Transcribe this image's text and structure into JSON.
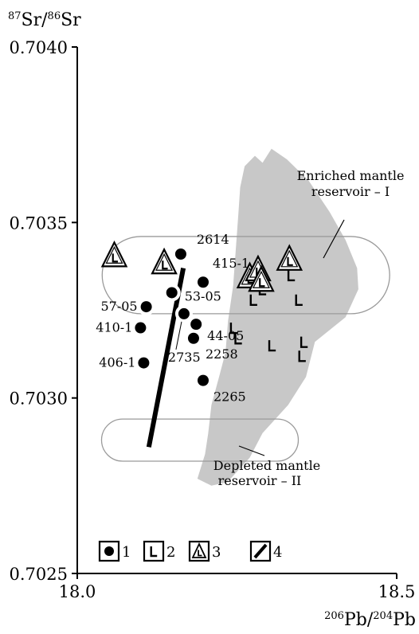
{
  "chart_data": {
    "type": "scatter",
    "xlabel": {
      "mass_top": "206",
      "element_top": "Pb/",
      "mass_bottom": "204",
      "element_bottom": "Pb"
    },
    "ylabel": {
      "mass_top": "87",
      "element_top": "Sr/",
      "mass_bottom": "86",
      "element_bottom": "Sr"
    },
    "xlim": [
      18.0,
      18.5
    ],
    "ylim": [
      0.7025,
      0.704
    ],
    "x_ticks": [
      {
        "value": 18.0,
        "label": "18.0"
      },
      {
        "value": 18.5,
        "label": "18.5"
      }
    ],
    "y_ticks": [
      {
        "value": 0.7025,
        "label": "0.7025"
      },
      {
        "value": 0.703,
        "label": "0.7030"
      },
      {
        "value": 0.7035,
        "label": "0.7035"
      },
      {
        "value": 0.704,
        "label": "0.7040"
      }
    ],
    "colors": {
      "field_gray": "#c8c8c8",
      "ink": "#000000",
      "envelope": "#9a9a9a"
    },
    "samples": [
      {
        "label": "2614",
        "x": 18.162,
        "y": 0.70341
      },
      {
        "label": "415-1",
        "x": 18.197,
        "y": 0.70333
      },
      {
        "label": "53-05",
        "x": 18.148,
        "y": 0.7033
      },
      {
        "label": "57-05",
        "x": 18.108,
        "y": 0.70326
      },
      {
        "label": "410-1",
        "x": 18.099,
        "y": 0.7032
      },
      {
        "label": "44-05",
        "x": 18.186,
        "y": 0.70321
      },
      {
        "label": "2735",
        "x": 18.167,
        "y": 0.70324
      },
      {
        "label": "2258",
        "x": 18.182,
        "y": 0.70317
      },
      {
        "label": "406-1",
        "x": 18.104,
        "y": 0.7031
      },
      {
        "label": "2265",
        "x": 18.197,
        "y": 0.70305
      }
    ],
    "basalts_L": [
      {
        "x": 18.284,
        "y": 0.70333
      },
      {
        "x": 18.29,
        "y": 0.70331
      },
      {
        "x": 18.276,
        "y": 0.70328
      },
      {
        "x": 18.335,
        "y": 0.70335
      },
      {
        "x": 18.347,
        "y": 0.70328
      },
      {
        "x": 18.245,
        "y": 0.7032
      },
      {
        "x": 18.252,
        "y": 0.70317
      },
      {
        "x": 18.305,
        "y": 0.70315
      },
      {
        "x": 18.352,
        "y": 0.70312
      },
      {
        "x": 18.355,
        "y": 0.70316
      }
    ],
    "triangles": [
      {
        "x": 18.058,
        "y": 0.7034
      },
      {
        "x": 18.136,
        "y": 0.70338
      },
      {
        "x": 18.27,
        "y": 0.70334
      },
      {
        "x": 18.283,
        "y": 0.70336
      },
      {
        "x": 18.288,
        "y": 0.70333
      },
      {
        "x": 18.332,
        "y": 0.70339
      }
    ],
    "trend_line": [
      {
        "x": 18.112,
        "y": 0.70286
      },
      {
        "x": 18.166,
        "y": 0.70337
      }
    ],
    "enriched_field": [
      [
        18.255,
        0.7036
      ],
      [
        18.262,
        0.70366
      ],
      [
        18.278,
        0.70369
      ],
      [
        18.29,
        0.70367
      ],
      [
        18.304,
        0.70371
      ],
      [
        18.328,
        0.70368
      ],
      [
        18.362,
        0.70362
      ],
      [
        18.395,
        0.70353
      ],
      [
        18.42,
        0.70345
      ],
      [
        18.438,
        0.70337
      ],
      [
        18.44,
        0.70331
      ],
      [
        18.42,
        0.70323
      ],
      [
        18.372,
        0.70316
      ],
      [
        18.358,
        0.70306
      ],
      [
        18.33,
        0.70298
      ],
      [
        18.29,
        0.7029
      ],
      [
        18.27,
        0.70283
      ],
      [
        18.235,
        0.70276
      ],
      [
        18.21,
        0.70275
      ],
      [
        18.188,
        0.70277
      ],
      [
        18.2,
        0.70284
      ],
      [
        18.205,
        0.7029
      ],
      [
        18.21,
        0.70298
      ],
      [
        18.222,
        0.70306
      ],
      [
        18.232,
        0.70313
      ],
      [
        18.236,
        0.70322
      ],
      [
        18.244,
        0.70332
      ],
      [
        18.248,
        0.70342
      ],
      [
        18.252,
        0.70352
      ]
    ],
    "enriched_envelope": {
      "cx": 18.264,
      "cy": 0.70335,
      "rx": 0.225,
      "ry": 0.00011
    },
    "depleted_envelope": {
      "cx": 18.192,
      "cy": 0.70288,
      "rx": 0.154,
      "ry": 6e-05
    },
    "annotations": {
      "enriched": {
        "line1": "Enriched mantle",
        "line2": "reservoir – I"
      },
      "depleted": {
        "line1": "Depleted mantle",
        "line2": "reservoir – II"
      }
    },
    "legend": [
      {
        "symbol": "filled-circle-box",
        "label": "1"
      },
      {
        "symbol": "L-box",
        "label": "2"
      },
      {
        "symbol": "triangle-L-box",
        "label": "3"
      },
      {
        "symbol": "slash-box",
        "label": "4"
      }
    ]
  }
}
